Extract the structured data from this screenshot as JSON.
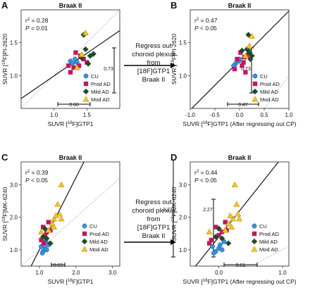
{
  "middle_text": {
    "top": [
      "Regress out",
      "choroid plexus",
      "from",
      "[18F]GTP1",
      "Braak II"
    ],
    "bottom": [
      "Regress out",
      "choroid plexus",
      "from",
      "[18F]GTP1",
      "Braak II"
    ]
  },
  "colors": {
    "CU": "#3b8fd9",
    "Prod AD": "#c2185b",
    "Mild AD": "#1f4a2a",
    "Mod AD": "#f2c12e"
  },
  "chart_data": [
    {
      "panel_letter": "A",
      "title": "Braak II",
      "type": "scatter",
      "xlabel_parts": [
        "SUVR [",
        "18",
        "F]GTP1"
      ],
      "ylabel_parts": [
        "SUVR [",
        "18",
        "F]PI-2620"
      ],
      "xlim": [
        0.5,
        2.0
      ],
      "ylim": [
        0.5,
        2.0
      ],
      "xticks": [
        1.0,
        1.5
      ],
      "yticks": [
        1.0,
        1.5
      ],
      "stats": {
        "r2": "0.28",
        "p": "0.01"
      },
      "range_x_label": "0.60",
      "range_y_label": "0.73",
      "legend": [
        "CU",
        "Prod AD",
        "Mild AD",
        "Mod AD"
      ],
      "groups": {
        "CU": [
          [
            1.25,
            1.22
          ],
          [
            1.32,
            1.25
          ],
          [
            1.28,
            1.18
          ],
          [
            1.35,
            1.2
          ]
        ],
        "Prod AD": [
          [
            1.22,
            1.15
          ],
          [
            1.3,
            1.12
          ],
          [
            1.38,
            1.15
          ],
          [
            1.45,
            1.25
          ],
          [
            1.4,
            1.3
          ],
          [
            1.25,
            1.05
          ],
          [
            1.5,
            1.2
          ],
          [
            1.33,
            1.35
          ]
        ],
        "Mild AD": [
          [
            1.55,
            1.3
          ],
          [
            1.48,
            1.4
          ],
          [
            1.6,
            1.33
          ],
          [
            1.45,
            1.62
          ],
          [
            1.42,
            1.27
          ],
          [
            1.52,
            1.18
          ]
        ],
        "Mod AD": [
          [
            1.48,
            1.65
          ],
          [
            1.35,
            1.12
          ],
          [
            1.42,
            1.32
          ]
        ]
      }
    },
    {
      "panel_letter": "B",
      "title": "Braak II",
      "type": "scatter",
      "xlabel_parts": [
        "SUVR [",
        "18",
        "F]GTP1 (After regressing out CP)"
      ],
      "ylabel_parts": [
        "SUVR [",
        "18",
        "F]PI-2620"
      ],
      "xlim": [
        -1.0,
        1.0
      ],
      "ylim": [
        0.5,
        2.0
      ],
      "xticks": [
        -1.0,
        -0.5,
        0.0,
        0.5,
        1.0
      ],
      "yticks": [
        1.0,
        1.5
      ],
      "stats": {
        "r2": "0.47",
        "p": "< 0.05"
      },
      "range_x_label": "0.47",
      "range_y_label": "0.73",
      "legend": [
        "CU",
        "Prod AD",
        "Mild AD",
        "Mod AD"
      ],
      "groups": {
        "CU": [
          [
            -0.08,
            1.18
          ],
          [
            -0.02,
            1.22
          ],
          [
            -0.12,
            1.15
          ],
          [
            0.0,
            1.25
          ]
        ],
        "Prod AD": [
          [
            -0.1,
            1.1
          ],
          [
            0.05,
            1.15
          ],
          [
            0.1,
            1.28
          ],
          [
            0.15,
            1.3
          ],
          [
            0.02,
            1.35
          ],
          [
            0.08,
            1.2
          ],
          [
            -0.05,
            1.25
          ],
          [
            0.12,
            1.05
          ]
        ],
        "Mild AD": [
          [
            0.2,
            1.35
          ],
          [
            0.15,
            1.4
          ],
          [
            0.25,
            1.3
          ],
          [
            0.18,
            1.62
          ],
          [
            0.05,
            1.38
          ],
          [
            0.22,
            1.25
          ]
        ],
        "Mod AD": [
          [
            0.25,
            1.6
          ],
          [
            0.2,
            1.45
          ],
          [
            0.12,
            1.3
          ]
        ]
      }
    },
    {
      "panel_letter": "C",
      "title": "Braak II",
      "type": "scatter",
      "xlabel_parts": [
        "SUVR [",
        "18",
        "F]GTP1"
      ],
      "ylabel_parts": [
        "SUVR [",
        "18",
        "F]MK-6240"
      ],
      "xlim": [
        0.5,
        3.2
      ],
      "ylim": [
        0.5,
        3.7
      ],
      "xticks": [
        1.0,
        2.0,
        3.0
      ],
      "yticks": [
        1.0,
        2.0,
        3.0
      ],
      "stats": {
        "r2": "0.39",
        "p": "< 0.05"
      },
      "range_x_label": "0.65",
      "range_y_label": "2.27",
      "legend": [
        "CU",
        "Prod AD",
        "Mild AD",
        "Mod AD"
      ],
      "groups": {
        "CU": [
          [
            1.1,
            0.95
          ],
          [
            1.15,
            1.05
          ],
          [
            1.2,
            1.0
          ],
          [
            1.05,
            1.1
          ],
          [
            1.25,
            1.15
          ],
          [
            1.08,
            0.9
          ],
          [
            1.18,
            1.25
          ]
        ],
        "Prod AD": [
          [
            1.05,
            1.3
          ],
          [
            1.15,
            1.45
          ],
          [
            1.2,
            1.55
          ],
          [
            1.1,
            1.7
          ],
          [
            1.25,
            1.85
          ],
          [
            1.12,
            1.2
          ],
          [
            1.3,
            1.6
          ]
        ],
        "Mild AD": [
          [
            1.2,
            1.35
          ],
          [
            1.1,
            1.4
          ],
          [
            1.3,
            1.2
          ],
          [
            1.15,
            1.65
          ]
        ],
        "Mod AD": [
          [
            1.25,
            1.6
          ],
          [
            1.4,
            1.95
          ],
          [
            1.55,
            2.1
          ],
          [
            1.6,
            3.0
          ],
          [
            1.45,
            2.05
          ],
          [
            1.5,
            2.4
          ],
          [
            1.35,
            1.8
          ],
          [
            1.6,
            1.95
          ],
          [
            1.05,
            1.55
          ],
          [
            1.4,
            1.7
          ]
        ]
      }
    },
    {
      "panel_letter": "D",
      "title": "Braak II",
      "type": "scatter",
      "xlabel_parts": [
        "SUVR [",
        "18",
        "F]GTP1 (After regressing out CP)"
      ],
      "ylabel_parts": [
        "SUVR [",
        "18",
        "F]MK-6240"
      ],
      "xlim": [
        -0.45,
        1.1
      ],
      "ylim": [
        0.5,
        3.7
      ],
      "xticks": [
        0.0,
        1.0
      ],
      "yticks": [
        1.0,
        2.0,
        3.0
      ],
      "stats": {
        "r2": "0.44",
        "p": "< 0.05"
      },
      "range_x_label": "0.61",
      "range_y_label": "2.27",
      "legend": [
        "CU",
        "Prod AD",
        "Mild AD",
        "Mod AD"
      ],
      "groups": {
        "CU": [
          [
            -0.05,
            0.95
          ],
          [
            0.0,
            1.05
          ],
          [
            0.05,
            1.0
          ],
          [
            -0.1,
            1.1
          ],
          [
            0.02,
            1.15
          ],
          [
            -0.08,
            0.9
          ],
          [
            0.08,
            1.25
          ]
        ],
        "Prod AD": [
          [
            -0.12,
            1.3
          ],
          [
            0.0,
            1.45
          ],
          [
            0.05,
            1.55
          ],
          [
            -0.05,
            1.7
          ],
          [
            0.1,
            1.85
          ],
          [
            -0.15,
            1.2
          ],
          [
            0.12,
            1.6
          ]
        ],
        "Mild AD": [
          [
            0.05,
            1.35
          ],
          [
            -0.05,
            1.4
          ],
          [
            0.15,
            1.2
          ],
          [
            0.0,
            1.65
          ]
        ],
        "Mod AD": [
          [
            0.1,
            1.6
          ],
          [
            0.22,
            1.95
          ],
          [
            0.3,
            2.1
          ],
          [
            0.25,
            3.0
          ],
          [
            0.18,
            2.05
          ],
          [
            0.28,
            2.4
          ],
          [
            0.15,
            1.8
          ],
          [
            0.32,
            1.95
          ],
          [
            -0.15,
            1.55
          ],
          [
            0.2,
            1.7
          ]
        ]
      }
    }
  ]
}
